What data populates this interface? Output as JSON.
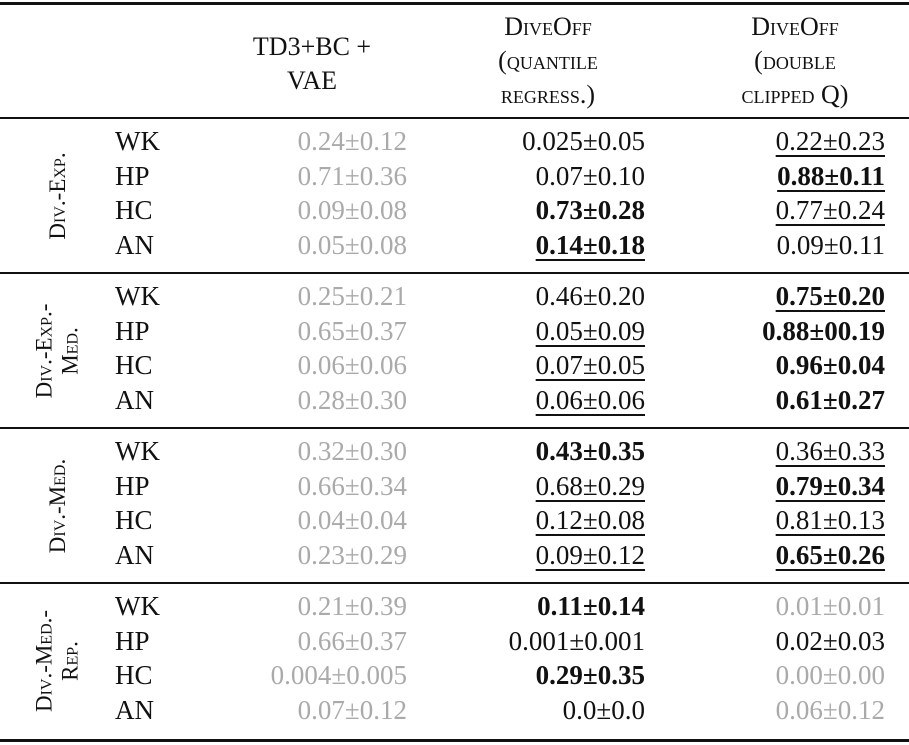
{
  "header": {
    "columns": [
      {
        "lines": [
          "TD3+BC +",
          "VAE"
        ]
      },
      {
        "lines": [
          "DiveOff",
          "(quantile",
          "regress.)"
        ]
      },
      {
        "lines": [
          "DiveOff",
          "(double",
          "clipped Q)"
        ]
      }
    ]
  },
  "groups": [
    {
      "label": [
        "Div.-Exp."
      ],
      "rows": [
        {
          "env": "WK",
          "cells": [
            {
              "text": "0.24±0.12",
              "style": [
                "gray"
              ]
            },
            {
              "text": "0.025±0.05"
            },
            {
              "text": "0.22±0.23",
              "style": [
                "underline"
              ]
            }
          ]
        },
        {
          "env": "HP",
          "cells": [
            {
              "text": "0.71±0.36",
              "style": [
                "gray"
              ]
            },
            {
              "text": "0.07±0.10"
            },
            {
              "text": "0.88±0.11",
              "style": [
                "bold",
                "underline"
              ]
            }
          ]
        },
        {
          "env": "HC",
          "cells": [
            {
              "text": "0.09±0.08",
              "style": [
                "gray"
              ]
            },
            {
              "text": "0.73±0.28",
              "style": [
                "bold"
              ]
            },
            {
              "text": "0.77±0.24",
              "style": [
                "underline"
              ]
            }
          ]
        },
        {
          "env": "AN",
          "cells": [
            {
              "text": "0.05±0.08",
              "style": [
                "gray"
              ]
            },
            {
              "text": "0.14±0.18",
              "style": [
                "bold",
                "underline"
              ]
            },
            {
              "text": "0.09±0.11"
            }
          ]
        }
      ]
    },
    {
      "label": [
        "Div.-Exp.-",
        "Med."
      ],
      "rows": [
        {
          "env": "WK",
          "cells": [
            {
              "text": "0.25±0.21",
              "style": [
                "gray"
              ]
            },
            {
              "text": "0.46±0.20"
            },
            {
              "text": "0.75±0.20",
              "style": [
                "bold",
                "underline"
              ]
            }
          ]
        },
        {
          "env": "HP",
          "cells": [
            {
              "text": "0.65±0.37",
              "style": [
                "gray"
              ]
            },
            {
              "text": "0.05±0.09",
              "style": [
                "underline"
              ]
            },
            {
              "text": "0.88±00.19",
              "style": [
                "bold"
              ]
            }
          ]
        },
        {
          "env": "HC",
          "cells": [
            {
              "text": "0.06±0.06",
              "style": [
                "gray"
              ]
            },
            {
              "text": "0.07±0.05",
              "style": [
                "underline"
              ]
            },
            {
              "text": "0.96±0.04",
              "style": [
                "bold"
              ]
            }
          ]
        },
        {
          "env": "AN",
          "cells": [
            {
              "text": "0.28±0.30",
              "style": [
                "gray"
              ]
            },
            {
              "text": "0.06±0.06",
              "style": [
                "underline"
              ]
            },
            {
              "text": "0.61±0.27",
              "style": [
                "bold"
              ]
            }
          ]
        }
      ]
    },
    {
      "label": [
        "Div.-Med."
      ],
      "rows": [
        {
          "env": "WK",
          "cells": [
            {
              "text": "0.32±0.30",
              "style": [
                "gray"
              ]
            },
            {
              "text": "0.43±0.35",
              "style": [
                "bold"
              ]
            },
            {
              "text": "0.36±0.33",
              "style": [
                "underline"
              ]
            }
          ]
        },
        {
          "env": "HP",
          "cells": [
            {
              "text": "0.66±0.34",
              "style": [
                "gray"
              ]
            },
            {
              "text": "0.68±0.29",
              "style": [
                "underline"
              ]
            },
            {
              "text": "0.79±0.34",
              "style": [
                "bold",
                "underline"
              ]
            }
          ]
        },
        {
          "env": "HC",
          "cells": [
            {
              "text": "0.04±0.04",
              "style": [
                "gray"
              ]
            },
            {
              "text": "0.12±0.08",
              "style": [
                "underline"
              ]
            },
            {
              "text": "0.81±0.13",
              "style": [
                "underline"
              ]
            }
          ]
        },
        {
          "env": "AN",
          "cells": [
            {
              "text": "0.23±0.29",
              "style": [
                "gray"
              ]
            },
            {
              "text": "0.09±0.12",
              "style": [
                "underline"
              ]
            },
            {
              "text": "0.65±0.26",
              "style": [
                "bold",
                "underline"
              ]
            }
          ]
        }
      ]
    },
    {
      "label": [
        "Div.-Med.-",
        "Rep."
      ],
      "rows": [
        {
          "env": "WK",
          "cells": [
            {
              "text": "0.21±0.39",
              "style": [
                "gray"
              ]
            },
            {
              "text": "0.11±0.14",
              "style": [
                "bold"
              ]
            },
            {
              "text": "0.01±0.01",
              "style": [
                "gray"
              ]
            }
          ]
        },
        {
          "env": "HP",
          "cells": [
            {
              "text": "0.66±0.37",
              "style": [
                "gray"
              ]
            },
            {
              "text": "0.001±0.001"
            },
            {
              "text": "0.02±0.03"
            }
          ]
        },
        {
          "env": "HC",
          "cells": [
            {
              "text": "0.004±0.005",
              "style": [
                "gray"
              ]
            },
            {
              "text": "0.29±0.35",
              "style": [
                "bold"
              ]
            },
            {
              "text": "0.00±0.00",
              "style": [
                "gray"
              ]
            }
          ]
        },
        {
          "env": "AN",
          "cells": [
            {
              "text": "0.07±0.12",
              "style": [
                "gray"
              ]
            },
            {
              "text": "0.0±0.0"
            },
            {
              "text": "0.06±0.12",
              "style": [
                "gray"
              ]
            }
          ]
        }
      ]
    }
  ]
}
